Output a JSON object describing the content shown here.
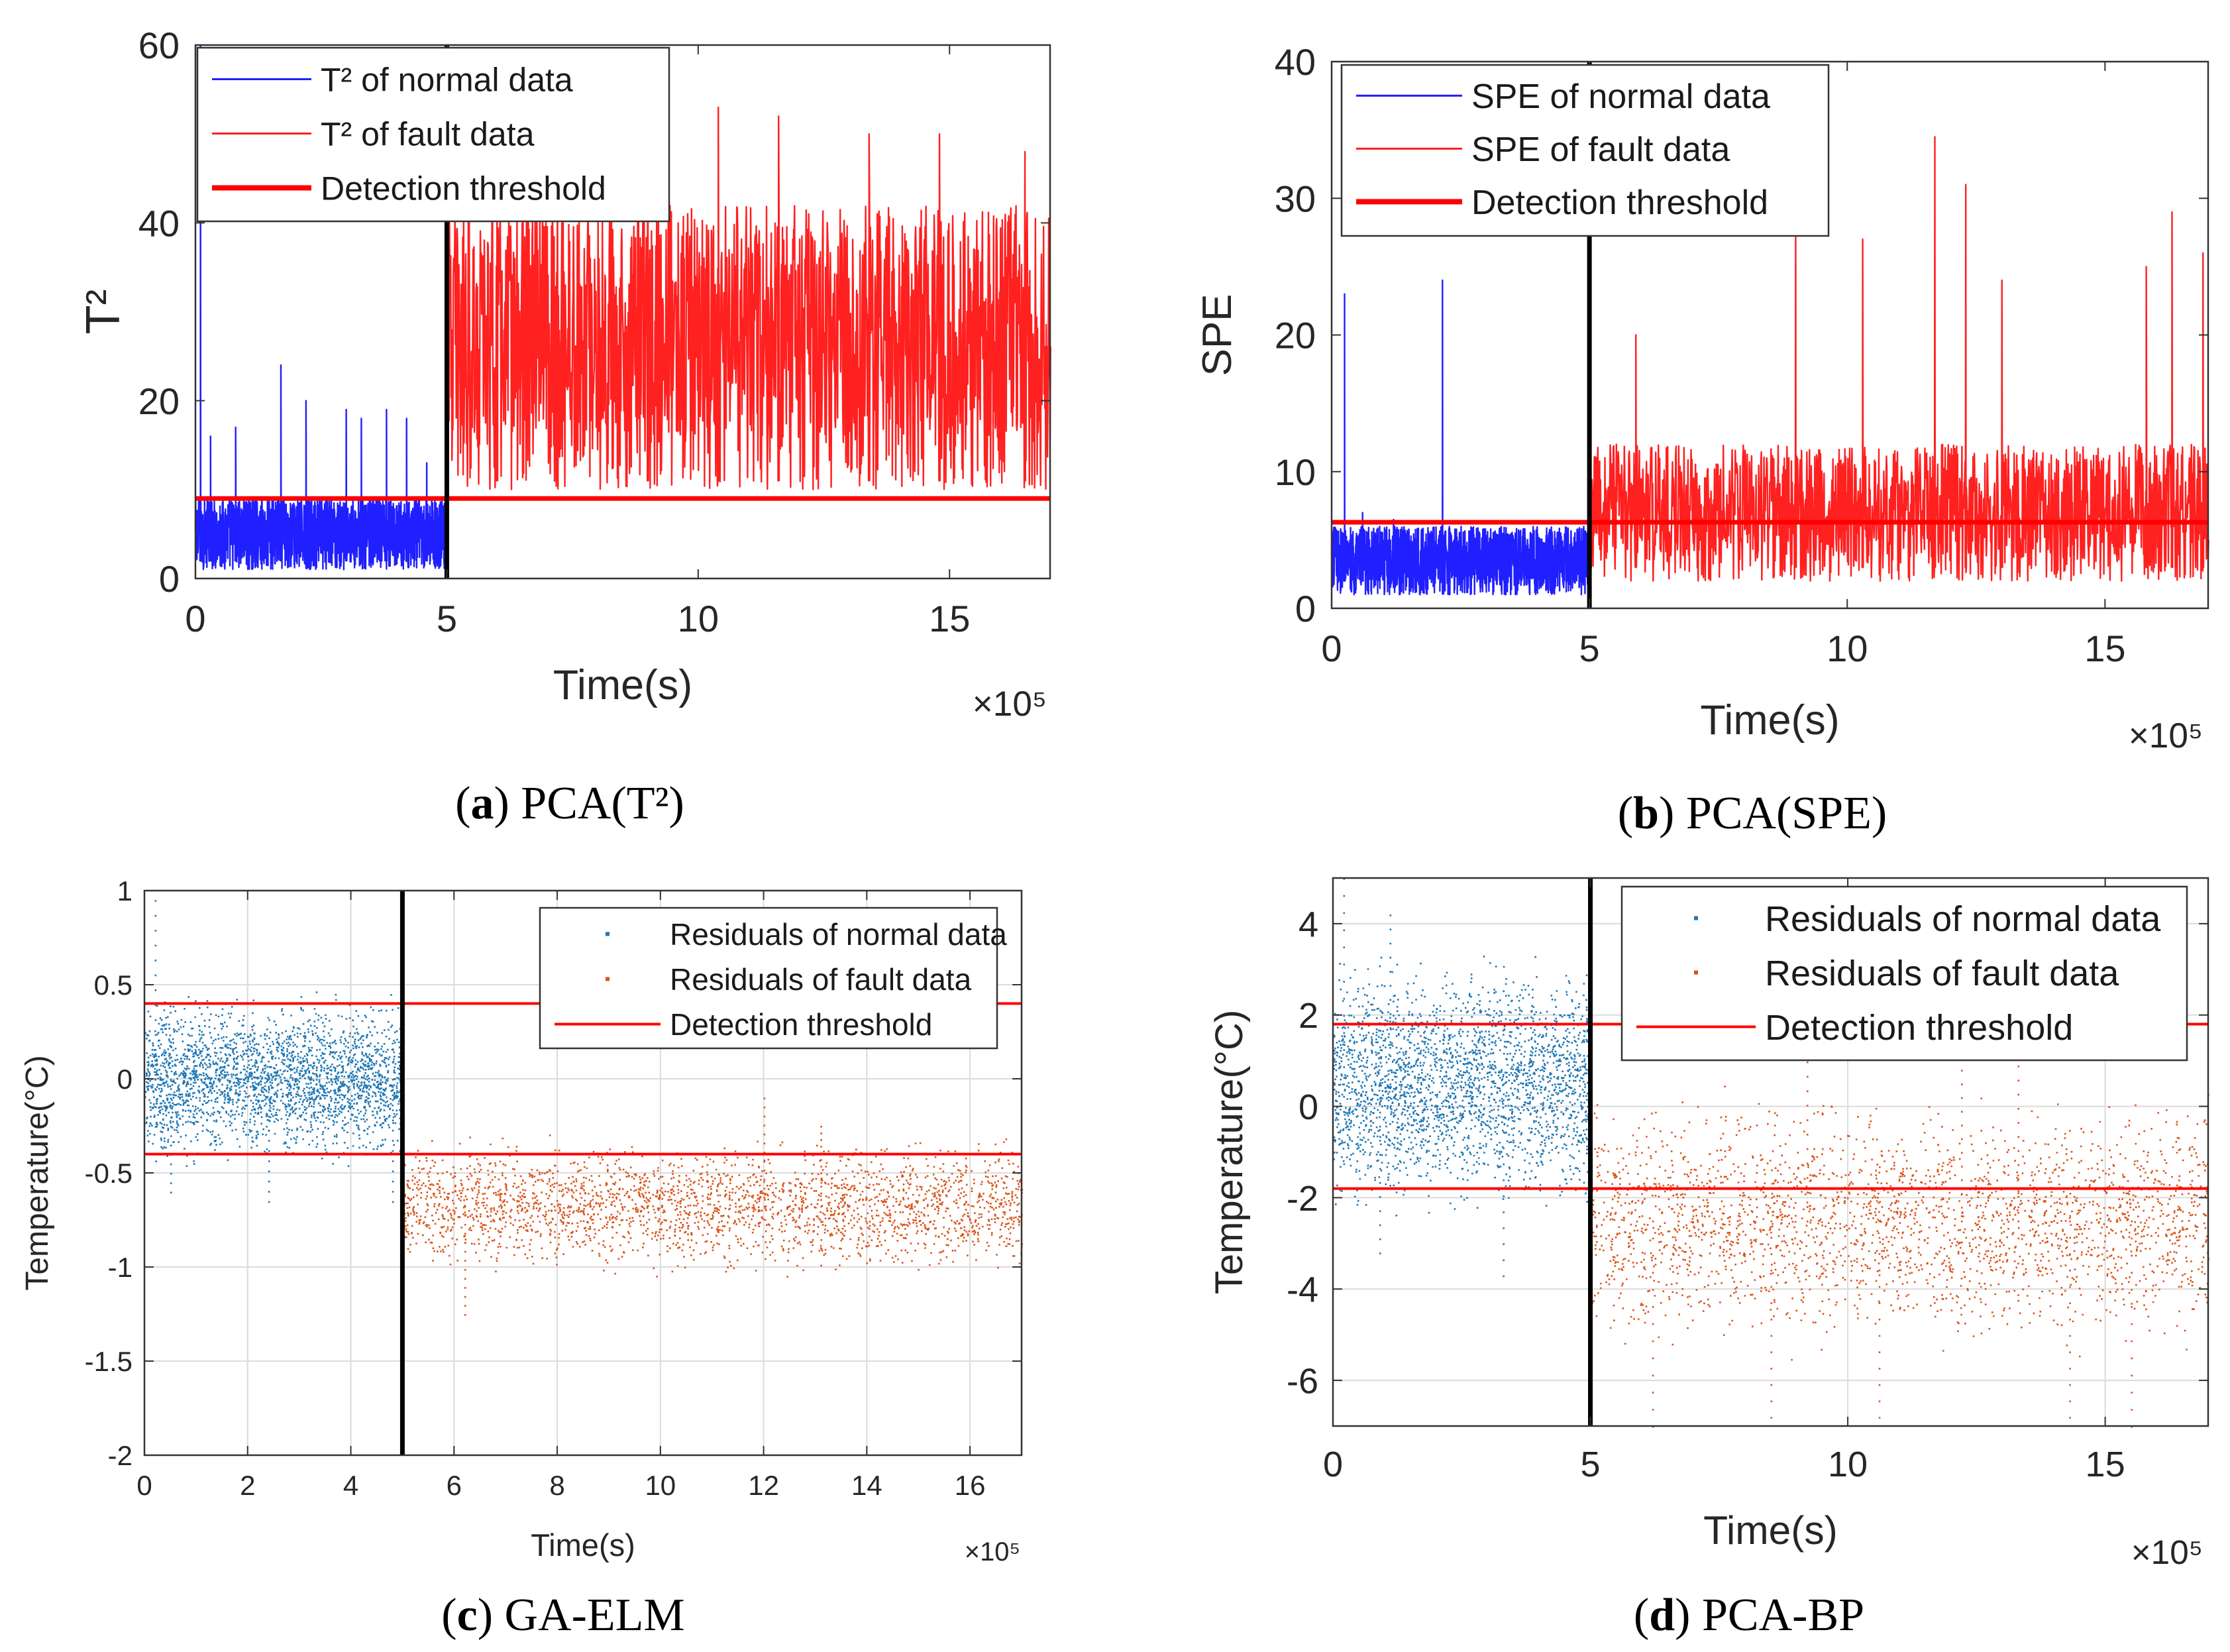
{
  "chart_data": [
    {
      "id": "a",
      "type": "line",
      "caption": {
        "letter": "a",
        "text": "PCA(T²)"
      },
      "xlabel": "Time(s)",
      "ylabel": "T²",
      "xlim": [
        0,
        17
      ],
      "ylim": [
        0,
        60
      ],
      "x_multiplier": "×10⁵",
      "xticks": [
        0,
        5,
        10,
        15
      ],
      "yticks": [
        0,
        20,
        40,
        60
      ],
      "grid": false,
      "legend_position": "top-left",
      "fault_start": 5,
      "series": [
        {
          "name": "T² of normal data",
          "style": "line",
          "color": "#1f1fff",
          "x_range": [
            0,
            5
          ],
          "base": [
            1,
            9
          ],
          "spikes": [
            [
              0.1,
              60
            ],
            [
              0.3,
              16
            ],
            [
              0.8,
              17
            ],
            [
              1.7,
              24
            ],
            [
              2.2,
              20
            ],
            [
              3.0,
              19
            ],
            [
              3.3,
              18
            ],
            [
              3.8,
              19
            ],
            [
              4.2,
              18
            ],
            [
              4.6,
              13
            ]
          ]
        },
        {
          "name": "T² of fault data",
          "style": "line",
          "color": "#ff2020",
          "x_range": [
            5,
            17
          ],
          "base": [
            10,
            42
          ],
          "spikes": [
            [
              6.0,
              44
            ],
            [
              7.2,
              46
            ],
            [
              9.0,
              48
            ],
            [
              10.4,
              53
            ],
            [
              11.6,
              52
            ],
            [
              13.4,
              50
            ],
            [
              14.8,
              50
            ],
            [
              16.5,
              48
            ]
          ]
        },
        {
          "name": "Detection threshold",
          "style": "threshold",
          "color": "#ff0000",
          "values": [
            9
          ]
        }
      ]
    },
    {
      "id": "b",
      "type": "line",
      "caption": {
        "letter": "b",
        "text": "PCA(SPE)"
      },
      "xlabel": "Time(s)",
      "ylabel": "SPE",
      "xlim": [
        0,
        17
      ],
      "ylim": [
        0,
        40
      ],
      "x_multiplier": "×10⁵",
      "xticks": [
        0,
        5,
        10,
        15
      ],
      "yticks": [
        0,
        10,
        20,
        30,
        40
      ],
      "grid": false,
      "legend_position": "top-left",
      "fault_start": 5,
      "series": [
        {
          "name": "SPE of normal data",
          "style": "line",
          "color": "#1f1fff",
          "x_range": [
            0,
            5
          ],
          "base": [
            1,
            6
          ],
          "spikes": [
            [
              0.25,
              23
            ],
            [
              2.15,
              24
            ],
            [
              0.6,
              7
            ],
            [
              1.2,
              6.5
            ]
          ]
        },
        {
          "name": "SPE of fault data",
          "style": "line",
          "color": "#ff2020",
          "x_range": [
            5,
            17
          ],
          "base": [
            2,
            12
          ],
          "spikes": [
            [
              5.9,
              20
            ],
            [
              9.0,
              28
            ],
            [
              10.3,
              27
            ],
            [
              11.7,
              34.5
            ],
            [
              12.3,
              31
            ],
            [
              13.0,
              24
            ],
            [
              15.8,
              25
            ],
            [
              16.3,
              29
            ],
            [
              16.9,
              26
            ]
          ]
        },
        {
          "name": "Detection threshold",
          "style": "threshold",
          "color": "#ff0000",
          "values": [
            6.3
          ]
        }
      ]
    },
    {
      "id": "c",
      "type": "scatter",
      "caption": {
        "letter": "c",
        "text": "GA-ELM"
      },
      "xlabel": "Time(s)",
      "ylabel": "Temperature(°C)",
      "xlim": [
        0,
        17
      ],
      "ylim": [
        -2,
        1
      ],
      "x_multiplier": "×10⁵",
      "xticks": [
        0,
        2,
        4,
        6,
        8,
        10,
        12,
        14,
        16
      ],
      "yticks": [
        -2,
        -1.5,
        -1,
        -0.5,
        0,
        0.5,
        1
      ],
      "grid": true,
      "legend_position": "top-right",
      "fault_start": 5,
      "series": [
        {
          "name": "Residuals of normal data",
          "style": "dots",
          "color": "#1f77b4",
          "x_range": [
            0,
            5
          ],
          "base": [
            -0.4,
            0.4
          ],
          "spikes": [
            [
              0.2,
              0.95
            ],
            [
              0.5,
              -0.6
            ],
            [
              2.4,
              -0.65
            ],
            [
              4.8,
              -0.65
            ]
          ]
        },
        {
          "name": "Residuals of fault data",
          "style": "dots",
          "color": "#d95319",
          "x_range": [
            5,
            17
          ],
          "base": [
            -1.0,
            -0.35
          ],
          "spikes": [
            [
              6.2,
              -1.25
            ],
            [
              12.0,
              -0.1
            ],
            [
              13.1,
              -0.25
            ]
          ]
        },
        {
          "name": "Detection threshold",
          "style": "threshold",
          "color": "#ff0000",
          "values": [
            0.4,
            -0.4
          ]
        }
      ]
    },
    {
      "id": "d",
      "type": "scatter",
      "caption": {
        "letter": "d",
        "text": "PCA-BP"
      },
      "xlabel": "Time(s)",
      "ylabel": "Temperature(°C)",
      "xlim": [
        0,
        17
      ],
      "ylim": [
        -7,
        5
      ],
      "x_multiplier": "×10⁵",
      "xticks": [
        0,
        5,
        10,
        15
      ],
      "yticks": [
        -6,
        -4,
        -2,
        0,
        2,
        4
      ],
      "grid": true,
      "legend_position": "top-right",
      "fault_start": 5,
      "series": [
        {
          "name": "Residuals of normal data",
          "style": "dots",
          "color": "#1f77b4",
          "x_range": [
            0,
            5
          ],
          "base": [
            -2,
            3
          ],
          "spikes": [
            [
              0.2,
              5
            ],
            [
              1.1,
              4.2
            ],
            [
              3.3,
              -3.7
            ],
            [
              0.9,
              -3.2
            ]
          ]
        },
        {
          "name": "Residuals of fault data",
          "style": "dots",
          "color": "#d95319",
          "x_range": [
            5,
            17
          ],
          "base": [
            -5,
            0
          ],
          "spikes": [
            [
              6.2,
              -7
            ],
            [
              8.5,
              -6.8
            ],
            [
              9.2,
              1.3
            ],
            [
              10.6,
              -6.8
            ],
            [
              12.2,
              1.1
            ],
            [
              13.3,
              1.2
            ],
            [
              14.3,
              -6.8
            ],
            [
              15.5,
              -7
            ]
          ]
        },
        {
          "name": "Detection threshold",
          "style": "threshold",
          "color": "#ff0000",
          "values": [
            1.8,
            -1.8
          ]
        }
      ]
    }
  ]
}
